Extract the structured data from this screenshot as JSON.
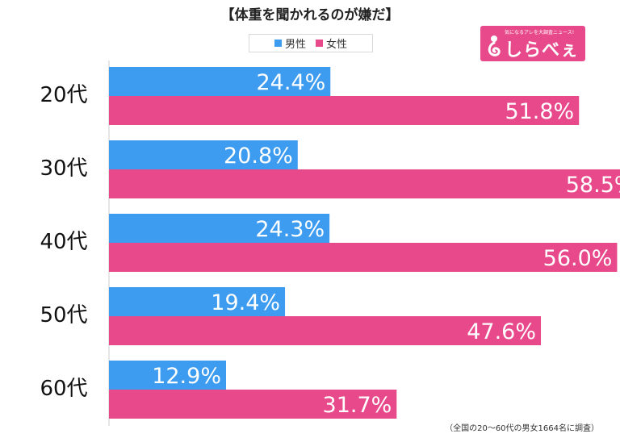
{
  "title": "【体重を聞かれるのが嫌だ】",
  "logo": {
    "text": "しらべぇ",
    "tagline": "気になるアレを大調査ニュース!"
  },
  "footnote": "（全国の20～60代の男女1664名に調査）",
  "colors": {
    "male": "#3d9cf0",
    "female": "#e8498b"
  },
  "chart_data": {
    "type": "bar",
    "orientation": "horizontal",
    "categories": [
      "20代",
      "30代",
      "40代",
      "50代",
      "60代"
    ],
    "series": [
      {
        "name": "男性",
        "values": [
          24.4,
          20.8,
          24.3,
          19.4,
          12.9
        ]
      },
      {
        "name": "女性",
        "values": [
          51.8,
          58.5,
          56.0,
          47.6,
          31.7
        ]
      }
    ],
    "value_format": "{v}%",
    "xlim": [
      0,
      60
    ],
    "grid": false,
    "legend": "top"
  }
}
